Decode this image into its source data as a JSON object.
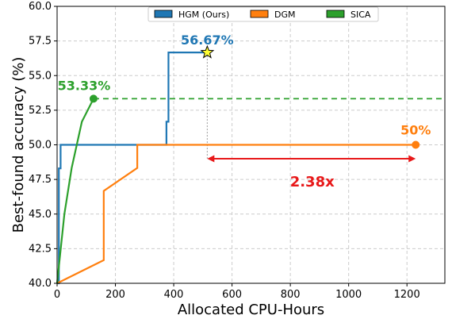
{
  "chart_data": {
    "type": "line",
    "xlabel": "Allocated CPU-Hours",
    "ylabel": "Best-found accuracy (%)",
    "xlim": [
      0,
      1330
    ],
    "ylim": [
      40,
      60
    ],
    "x_ticks": [
      0,
      200,
      400,
      600,
      800,
      1000,
      1200
    ],
    "y_ticks": [
      40.0,
      42.5,
      45.0,
      47.5,
      50.0,
      52.5,
      55.0,
      57.5,
      60.0
    ],
    "grid": true,
    "legend_position": "top-center",
    "series": [
      {
        "name": "HGM (Ours)",
        "color": "#1f77b4",
        "step": true,
        "points": [
          [
            0,
            40.0
          ],
          [
            6,
            48.3
          ],
          [
            12,
            50.0
          ],
          [
            370,
            50.0
          ],
          [
            375,
            51.67
          ],
          [
            382,
            56.67
          ],
          [
            515,
            56.67
          ]
        ],
        "endpoint": [
          515,
          56.67
        ],
        "endpoint_marker": "star",
        "endpoint_label": "56.67%"
      },
      {
        "name": "DGM",
        "color": "#ff7f0e",
        "step": false,
        "points": [
          [
            0,
            40.0
          ],
          [
            160,
            41.67
          ],
          [
            160,
            46.67
          ],
          [
            275,
            48.33
          ],
          [
            275,
            50.0
          ],
          [
            1230,
            50.0
          ]
        ],
        "endpoint": [
          1230,
          50.0
        ],
        "endpoint_marker": "circle",
        "endpoint_label": "50%"
      },
      {
        "name": "SICA",
        "color": "#2ca02c",
        "step": false,
        "points": [
          [
            0,
            40.0
          ],
          [
            25,
            45.0
          ],
          [
            50,
            48.33
          ],
          [
            85,
            51.67
          ],
          [
            125,
            53.33
          ]
        ],
        "endpoint": [
          125,
          53.33
        ],
        "endpoint_marker": "circle",
        "endpoint_label": "53.33%",
        "extension_y": 53.33
      }
    ],
    "annotations": [
      {
        "type": "vline",
        "x": 515,
        "y_from": 49.0,
        "y_to": 56.67,
        "color": "#999999"
      },
      {
        "type": "double-arrow",
        "x_from": 515,
        "x_to": 1230,
        "y": 49.0,
        "color": "#e8191a"
      },
      {
        "type": "text",
        "text": "2.38x",
        "x": 875,
        "y": 47.0,
        "color": "#e8191a"
      }
    ]
  }
}
